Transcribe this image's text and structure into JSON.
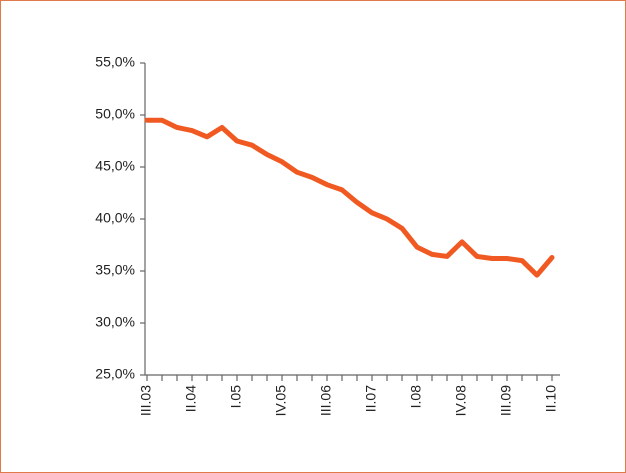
{
  "chart_data": {
    "type": "line",
    "categories": [
      "III.03",
      null,
      null,
      "II.04",
      null,
      null,
      "I.05",
      null,
      null,
      "IV.05",
      null,
      null,
      "III.06",
      null,
      null,
      "II.07",
      null,
      null,
      "I.08",
      null,
      null,
      "IV.08",
      null,
      null,
      "III.09",
      null,
      null,
      "II.10"
    ],
    "series": [
      {
        "color": "#f05a22",
        "values": [
          49.5,
          49.5,
          48.8,
          48.5,
          47.9,
          48.8,
          47.5,
          47.1,
          46.2,
          45.5,
          44.5,
          44.0,
          43.3,
          42.8,
          41.6,
          40.6,
          40.0,
          39.1,
          37.3,
          36.6,
          36.4,
          37.8,
          36.4,
          36.2,
          36.2,
          36.0,
          34.6,
          36.3
        ]
      }
    ],
    "ylim": [
      25,
      55
    ],
    "yticks": [
      {
        "value": 25,
        "label": "25,0%"
      },
      {
        "value": 30,
        "label": "30,0%"
      },
      {
        "value": 35,
        "label": "35,0%"
      },
      {
        "value": 40,
        "label": "40,0%"
      },
      {
        "value": 45,
        "label": "45,0%"
      },
      {
        "value": 50,
        "label": "50,0%"
      },
      {
        "value": 55,
        "label": "55,0%"
      }
    ],
    "grid": false
  }
}
